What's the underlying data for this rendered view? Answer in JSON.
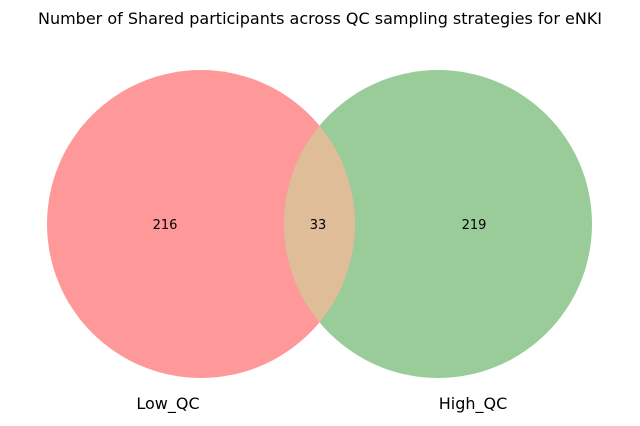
{
  "title": "Number of Shared participants across QC sampling strategies for eNKI",
  "sets": [
    {
      "label": "Low_QC",
      "only_count": "216",
      "color": "#ff9999"
    },
    {
      "label": "High_QC",
      "only_count": "219",
      "color": "#99cc99"
    }
  ],
  "intersection": {
    "count": "33",
    "color": "#e0bd99"
  }
}
